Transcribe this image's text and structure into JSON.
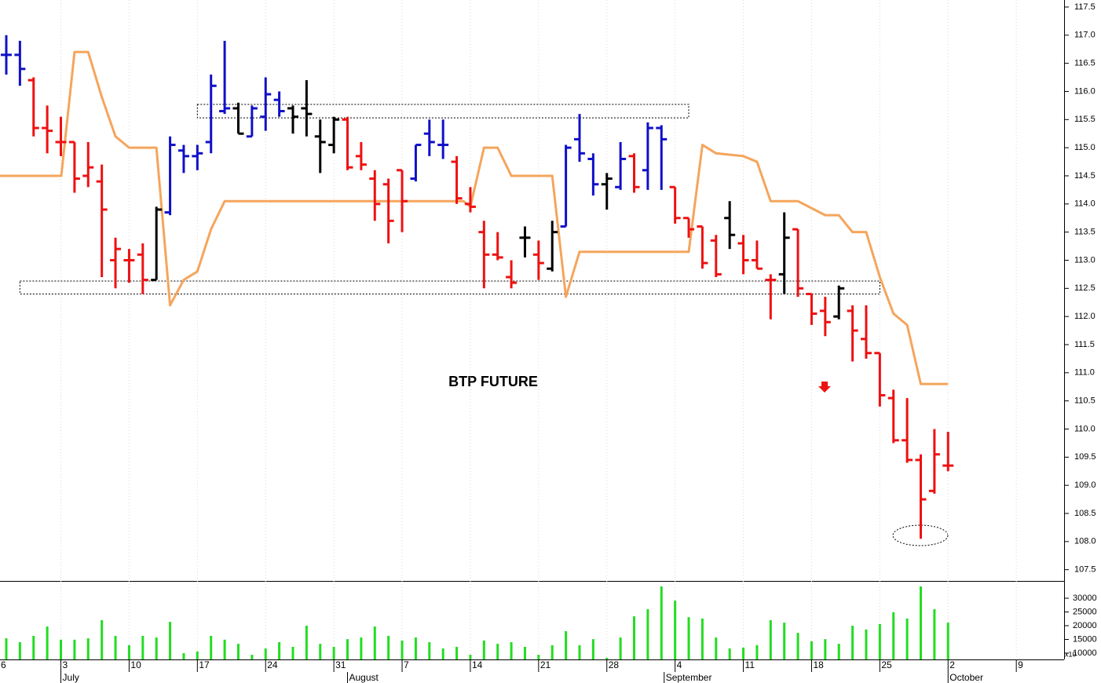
{
  "chart_data": {
    "type": "ohlc",
    "title": "BTP FUTURE",
    "open": [
      116.65,
      116.65,
      116.2,
      115.35,
      115.1,
      115.1,
      114.5,
      114.4,
      113.0,
      113.0,
      113.1,
      112.65,
      113.85,
      114.95,
      114.85,
      115.1,
      115.65,
      115.7,
      115.2,
      115.55,
      115.85,
      115.7,
      115.7,
      115.2,
      115.05,
      115.5,
      114.85,
      114.45,
      114.35,
      114.6,
      114.45,
      115.25,
      115.05,
      114.75,
      114.0,
      113.5,
      113.1,
      112.7,
      113.4,
      113.1,
      112.85,
      113.6,
      115.15,
      114.8,
      114.35,
      114.3,
      114.85,
      114.6,
      115.35,
      114.3,
      113.75,
      113.6,
      113.35,
      113.75,
      113.3,
      113.0,
      112.65,
      112.75,
      113.55,
      112.4,
      112.1,
      112.0,
      112.1,
      111.6,
      111.35,
      110.55,
      109.8,
      109.45,
      108.9,
      109.35
    ],
    "high": [
      117.0,
      116.9,
      116.25,
      115.75,
      115.55,
      115.1,
      115.1,
      114.7,
      113.4,
      113.2,
      113.3,
      113.95,
      115.2,
      115.05,
      115.05,
      116.3,
      116.9,
      115.8,
      115.75,
      116.25,
      116.0,
      115.75,
      116.2,
      115.5,
      115.55,
      115.55,
      115.1,
      114.6,
      114.45,
      114.6,
      115.05,
      115.5,
      115.5,
      114.85,
      114.3,
      113.7,
      113.5,
      113.0,
      113.6,
      113.35,
      113.7,
      115.05,
      115.6,
      114.9,
      114.55,
      115.1,
      114.9,
      115.45,
      115.4,
      114.3,
      113.75,
      113.6,
      113.45,
      114.05,
      113.45,
      113.35,
      112.75,
      113.85,
      113.55,
      112.4,
      112.35,
      112.55,
      112.2,
      112.2,
      111.35,
      110.7,
      110.55,
      109.55,
      110.0,
      109.95
    ],
    "low": [
      116.3,
      116.1,
      115.2,
      114.9,
      114.85,
      114.2,
      114.3,
      112.7,
      112.5,
      112.6,
      112.4,
      112.65,
      113.8,
      114.55,
      114.6,
      114.9,
      115.6,
      115.25,
      115.2,
      115.3,
      115.55,
      115.25,
      115.2,
      114.55,
      114.9,
      114.6,
      114.6,
      113.7,
      113.3,
      113.5,
      114.4,
      114.85,
      114.8,
      114.0,
      113.85,
      112.5,
      113.0,
      112.5,
      113.05,
      112.65,
      112.8,
      113.6,
      114.75,
      114.15,
      113.9,
      114.25,
      114.2,
      114.25,
      114.25,
      113.65,
      113.4,
      112.85,
      112.7,
      113.2,
      112.75,
      112.85,
      111.95,
      112.4,
      112.35,
      111.85,
      111.65,
      111.95,
      111.2,
      111.25,
      110.4,
      109.75,
      109.4,
      108.05,
      108.85,
      109.25
    ],
    "close": [
      116.65,
      116.4,
      115.35,
      115.3,
      115.1,
      114.45,
      114.65,
      113.9,
      113.2,
      113.0,
      112.65,
      113.9,
      115.05,
      114.85,
      114.9,
      116.1,
      115.7,
      115.25,
      115.7,
      115.95,
      115.65,
      115.55,
      115.6,
      115.1,
      115.5,
      114.65,
      114.7,
      114.0,
      113.7,
      114.05,
      115.05,
      115.1,
      115.05,
      114.1,
      113.95,
      113.1,
      113.05,
      112.6,
      113.4,
      112.95,
      113.5,
      115.0,
      114.9,
      114.35,
      114.45,
      114.8,
      114.3,
      115.35,
      115.15,
      113.75,
      113.55,
      112.95,
      112.75,
      113.45,
      113.0,
      112.85,
      112.65,
      113.4,
      112.5,
      112.05,
      111.9,
      112.5,
      111.75,
      111.35,
      110.6,
      109.8,
      109.45,
      108.75,
      109.55,
      109.35
    ],
    "colors": [
      "#1010c8",
      "#1010c8",
      "#ee1111",
      "#ee1111",
      "#ee1111",
      "#ee1111",
      "#ee1111",
      "#ee1111",
      "#ee1111",
      "#ee1111",
      "#ee1111",
      "#000000",
      "#1010c8",
      "#1010c8",
      "#1010c8",
      "#1010c8",
      "#1010c8",
      "#000000",
      "#1010c8",
      "#1010c8",
      "#1010c8",
      "#000000",
      "#000000",
      "#000000",
      "#000000",
      "#ee1111",
      "#ee1111",
      "#ee1111",
      "#ee1111",
      "#ee1111",
      "#1010c8",
      "#1010c8",
      "#1010c8",
      "#ee1111",
      "#ee1111",
      "#ee1111",
      "#ee1111",
      "#ee1111",
      "#000000",
      "#ee1111",
      "#000000",
      "#1010c8",
      "#1010c8",
      "#1010c8",
      "#000000",
      "#1010c8",
      "#ee1111",
      "#1010c8",
      "#1010c8",
      "#ee1111",
      "#ee1111",
      "#ee1111",
      "#ee1111",
      "#000000",
      "#ee1111",
      "#ee1111",
      "#ee1111",
      "#000000",
      "#ee1111",
      "#ee1111",
      "#ee1111",
      "#000000",
      "#ee1111",
      "#ee1111",
      "#ee1111",
      "#ee1111",
      "#ee1111",
      "#ee1111",
      "#ee1111",
      "#ee1111"
    ],
    "volume": [
      15400,
      14000,
      16300,
      19700,
      14900,
      14900,
      15400,
      22000,
      16300,
      12900,
      16300,
      15700,
      21400,
      10000,
      10600,
      16300,
      14900,
      13400,
      9400,
      11700,
      14000,
      12300,
      20000,
      13400,
      12300,
      15100,
      15700,
      19700,
      16300,
      14600,
      15700,
      14000,
      11700,
      12300,
      9400,
      14600,
      13400,
      14000,
      12300,
      9400,
      12900,
      18000,
      12900,
      15100,
      8300,
      15700,
      23400,
      26000,
      34300,
      29100,
      23100,
      22600,
      15700,
      11700,
      12000,
      12900,
      22000,
      21100,
      17400,
      14300,
      15100,
      13400,
      20000,
      18600,
      20600,
      24900,
      22600,
      34300,
      26000,
      21100
    ],
    "volume_color": "#22dd22",
    "stop_line": {
      "color": "#f5a55c",
      "x": [
        -0.46,
        4.03,
        5,
        6,
        7,
        8,
        9,
        11,
        12,
        13,
        14,
        15,
        16,
        33.5,
        34,
        35,
        36,
        37,
        40,
        41,
        42,
        50,
        51,
        52,
        54,
        55,
        56,
        58,
        60,
        61,
        62,
        63,
        64,
        65,
        66,
        67,
        69
      ],
      "values": [
        114.5,
        114.5,
        116.7,
        116.7,
        115.9,
        115.2,
        115.0,
        115.0,
        112.2,
        112.65,
        112.8,
        113.55,
        114.05,
        114.05,
        113.95,
        115.0,
        115.0,
        114.5,
        114.5,
        112.35,
        113.15,
        113.15,
        115.05,
        114.9,
        114.85,
        114.75,
        114.05,
        114.05,
        113.8,
        113.8,
        113.5,
        113.5,
        112.7,
        112.05,
        111.85,
        110.8,
        110.8
      ]
    },
    "zones": [
      {
        "xlim": [
          14,
          50
        ],
        "ylim": [
          115.53,
          115.77
        ]
      },
      {
        "xlim": [
          1,
          64
        ],
        "ylim": [
          112.4,
          112.63
        ]
      }
    ],
    "xlim": [
      -0.46,
      77.5
    ],
    "xticks": [
      {
        "value": -1,
        "label": "6"
      },
      {
        "value": 4,
        "label": "3"
      },
      {
        "value": 9,
        "label": "10"
      },
      {
        "value": 14,
        "label": "17"
      },
      {
        "value": 19,
        "label": "24"
      },
      {
        "value": 24,
        "label": "31"
      },
      {
        "value": 29,
        "label": "7"
      },
      {
        "value": 34,
        "label": "14"
      },
      {
        "value": 39,
        "label": "21"
      },
      {
        "value": 44,
        "label": "28"
      },
      {
        "value": 49,
        "label": "4"
      },
      {
        "value": 54,
        "label": "11"
      },
      {
        "value": 59,
        "label": "18"
      },
      {
        "value": 64,
        "label": "25"
      },
      {
        "value": 69,
        "label": "2"
      },
      {
        "value": 74,
        "label": "9"
      }
    ],
    "month_ticks": [
      {
        "value": 4,
        "label": "July"
      },
      {
        "value": 25,
        "label": "August"
      },
      {
        "value": 48.2,
        "label": "September"
      },
      {
        "value": 69,
        "label": "October"
      }
    ],
    "ylim": [
      107.3,
      117.625
    ],
    "yticks": [
      107.5,
      {
        "value": 108,
        "label": "108.0"
      },
      108.5,
      {
        "value": 109,
        "label": "109.0"
      },
      109.5,
      {
        "value": 110,
        "label": "110.0"
      },
      110.5,
      {
        "value": 111,
        "label": "111.0"
      },
      111.5,
      {
        "value": 112,
        "label": "112.0"
      },
      112.5,
      {
        "value": 113,
        "label": "113.0"
      },
      113.5,
      {
        "value": 114,
        "label": "114.0"
      },
      114.5,
      {
        "value": 115,
        "label": "115.0"
      },
      115.5,
      {
        "value": 116,
        "label": "116.0"
      },
      116.5,
      {
        "value": 117,
        "label": "117.0"
      },
      117.5
    ],
    "volume_ylim": [
      7700,
      36300
    ],
    "volume_ticks": [
      10000,
      15000,
      20000,
      25000,
      30000
    ],
    "volume_unit_label": "x10"
  }
}
